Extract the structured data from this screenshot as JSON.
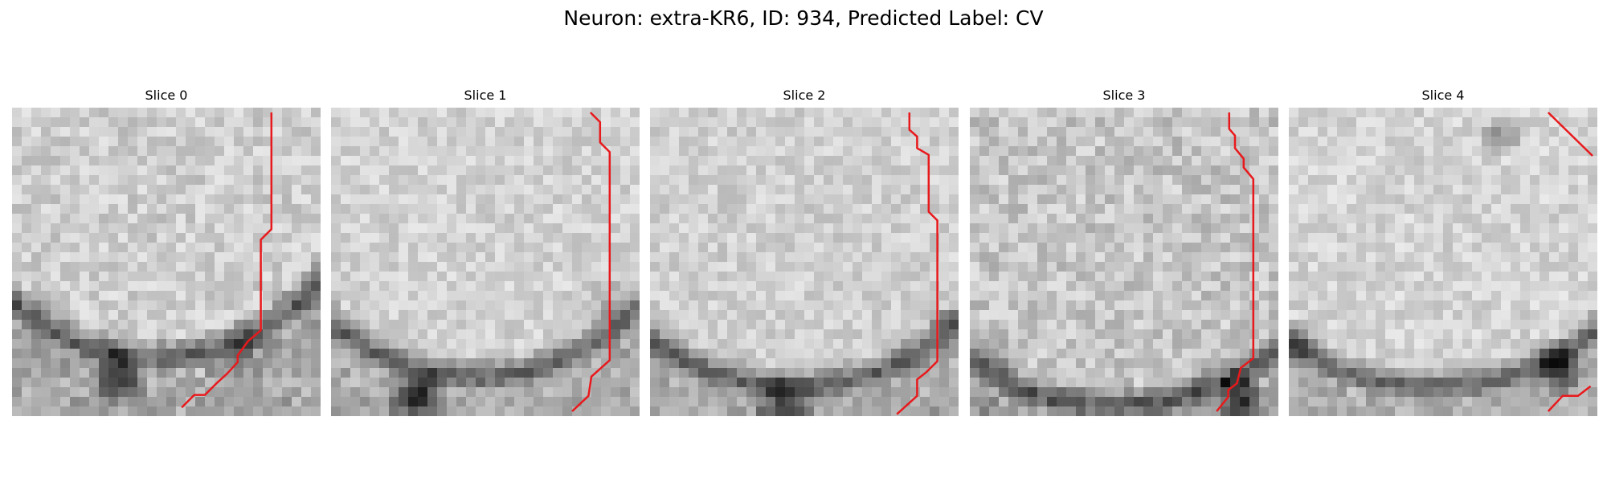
{
  "figure": {
    "title": "Neuron: extra-KR6, ID: 934, Predicted Label: CV"
  },
  "overlay_color": "#e8191c",
  "image_type": "grayscale micrograph slices with red contour trace",
  "panels": [
    {
      "title": "Slice 0"
    },
    {
      "title": "Slice 1"
    },
    {
      "title": "Slice 2"
    },
    {
      "title": "Slice 3"
    },
    {
      "title": "Slice 4"
    }
  ]
}
